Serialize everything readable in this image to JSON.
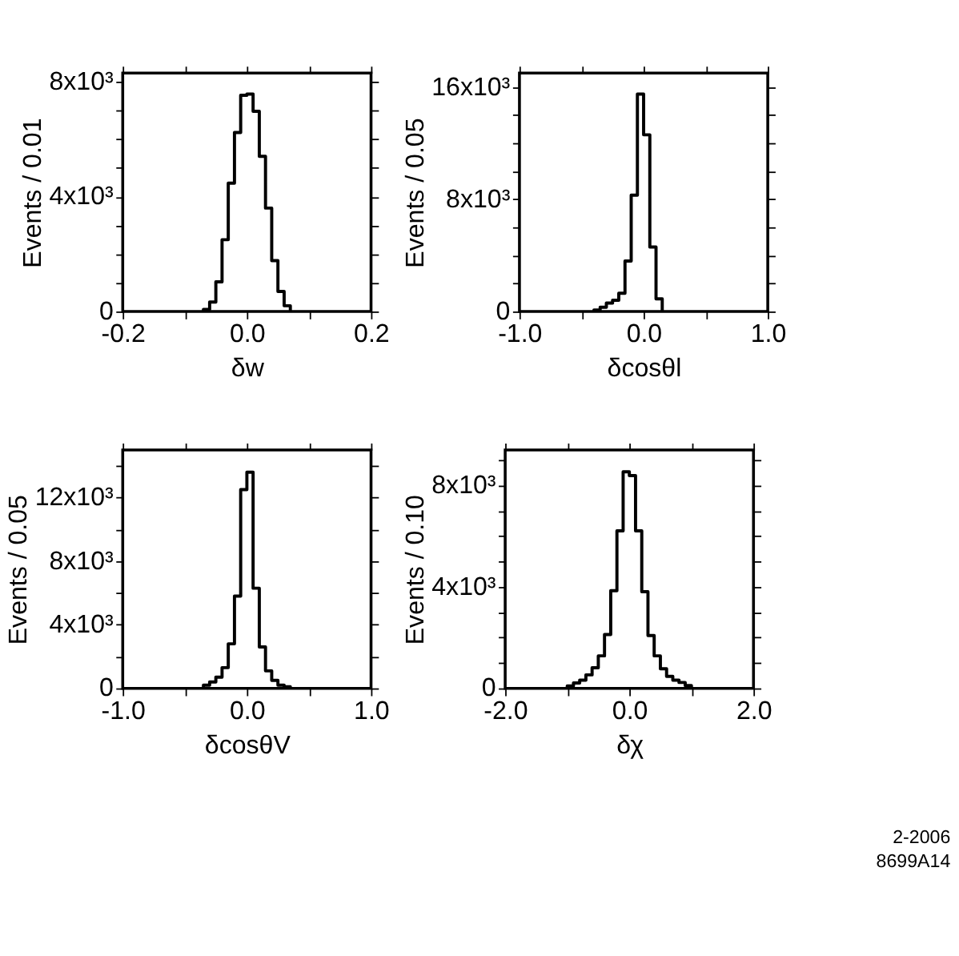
{
  "chart_data": [
    {
      "type": "histogram",
      "xlabel": "δw",
      "ylabel": "Events / 0.01",
      "color": "#000000",
      "bins": [
        -0.07,
        -0.06,
        -0.05,
        -0.04,
        -0.03,
        -0.02,
        -0.01,
        0.0,
        0.01,
        0.02,
        0.03,
        0.04,
        0.05,
        0.06,
        0.07
      ],
      "values": [
        70,
        330,
        1030,
        2500,
        4470,
        6230,
        7530,
        7570,
        6970,
        5400,
        3600,
        1770,
        700,
        200
      ],
      "xlim": [
        -0.2,
        0.2
      ],
      "xticks": [
        -0.2,
        {
          "value": -0.1,
          "label": null
        },
        {
          "value": 0,
          "label": "0.0"
        },
        {
          "value": 0.1,
          "label": null
        },
        0.2
      ],
      "ylim": [
        0,
        8300
      ],
      "yticks": [
        0,
        {
          "value": 1000,
          "label": null
        },
        {
          "value": 2000,
          "label": null
        },
        {
          "value": 3000,
          "label": null
        },
        {
          "value": 4000,
          "label": "4x10³"
        },
        {
          "value": 5000,
          "label": null
        },
        {
          "value": 6000,
          "label": null
        },
        {
          "value": 7000,
          "label": null
        },
        {
          "value": 8000,
          "label": "8x10³"
        }
      ]
    },
    {
      "type": "histogram",
      "xlabel": "δcosθl",
      "ylabel": "Events / 0.05",
      "color": "#000000",
      "bins": [
        -0.4,
        -0.35,
        -0.3,
        -0.25,
        -0.2,
        -0.15,
        -0.1,
        -0.05,
        0.0,
        0.05,
        0.1,
        0.15
      ],
      "values": [
        100,
        300,
        600,
        800,
        1300,
        3600,
        8300,
        15500,
        12600,
        4600,
        900
      ],
      "xlim": [
        -1.0,
        1.0
      ],
      "xticks": [
        {
          "value": -1,
          "label": "-1.0"
        },
        {
          "value": -0.5,
          "label": null
        },
        {
          "value": 0,
          "label": "0.0"
        },
        {
          "value": 0.5,
          "label": null
        },
        {
          "value": 1,
          "label": "1.0"
        }
      ],
      "ylim": [
        0,
        17000
      ],
      "yticks": [
        0,
        {
          "value": 2000,
          "label": null
        },
        {
          "value": 4000,
          "label": null
        },
        {
          "value": 6000,
          "label": null
        },
        {
          "value": 8000,
          "label": "8x10³"
        },
        {
          "value": 10000,
          "label": null
        },
        {
          "value": 12000,
          "label": null
        },
        {
          "value": 14000,
          "label": null
        },
        {
          "value": 16000,
          "label": "16x10³"
        }
      ]
    },
    {
      "type": "histogram",
      "xlabel": "δcosθV",
      "ylabel": "Events / 0.05",
      "color": "#000000",
      "bins": [
        -0.35,
        -0.3,
        -0.25,
        -0.2,
        -0.15,
        -0.1,
        -0.05,
        0.0,
        0.05,
        0.1,
        0.15,
        0.2,
        0.25,
        0.3,
        0.35
      ],
      "values": [
        200,
        400,
        700,
        1300,
        2800,
        5800,
        12500,
        13600,
        6300,
        2600,
        1100,
        500,
        200,
        100
      ],
      "xlim": [
        -1.0,
        1.0
      ],
      "xticks": [
        {
          "value": -1,
          "label": "-1.0"
        },
        {
          "value": -0.5,
          "label": null
        },
        {
          "value": 0,
          "label": "0.0"
        },
        {
          "value": 0.5,
          "label": null
        },
        {
          "value": 1,
          "label": "1.0"
        }
      ],
      "ylim": [
        0,
        15000
      ],
      "yticks": [
        0,
        {
          "value": 2000,
          "label": null
        },
        {
          "value": 4000,
          "label": "4x10³"
        },
        {
          "value": 6000,
          "label": null
        },
        {
          "value": 8000,
          "label": "8x10³"
        },
        {
          "value": 10000,
          "label": null
        },
        {
          "value": 12000,
          "label": "12x10³"
        },
        {
          "value": 14000,
          "label": null
        }
      ]
    },
    {
      "type": "histogram",
      "xlabel": "δχ",
      "ylabel": "Events / 0.10",
      "color": "#000000",
      "bins": [
        -1.0,
        -0.9,
        -0.8,
        -0.7,
        -0.6,
        -0.5,
        -0.4,
        -0.3,
        -0.2,
        -0.1,
        0.0,
        0.1,
        0.2,
        0.3,
        0.4,
        0.5,
        0.6,
        0.7,
        0.8,
        0.9,
        1.0
      ],
      "values": [
        90,
        210,
        320,
        530,
        810,
        1280,
        2120,
        3850,
        6210,
        8540,
        8390,
        6210,
        3810,
        2080,
        1280,
        770,
        470,
        320,
        230,
        110
      ],
      "xlim": [
        -2.0,
        2.0
      ],
      "xticks": [
        {
          "value": -2,
          "label": "-2.0"
        },
        {
          "value": -1,
          "label": null
        },
        {
          "value": 0,
          "label": "0.0"
        },
        {
          "value": 1,
          "label": null
        },
        {
          "value": 2,
          "label": "2.0"
        }
      ],
      "ylim": [
        0,
        9400
      ],
      "yticks": [
        0,
        {
          "value": 1000,
          "label": null
        },
        {
          "value": 2000,
          "label": null
        },
        {
          "value": 3000,
          "label": null
        },
        {
          "value": 4000,
          "label": "4x10³"
        },
        {
          "value": 5000,
          "label": null
        },
        {
          "value": 6000,
          "label": null
        },
        {
          "value": 7000,
          "label": null
        },
        {
          "value": 8000,
          "label": "8x10³"
        },
        {
          "value": 9000,
          "label": null
        }
      ],
      "annotations": [
        "2-2006",
        "8699A14"
      ]
    }
  ]
}
